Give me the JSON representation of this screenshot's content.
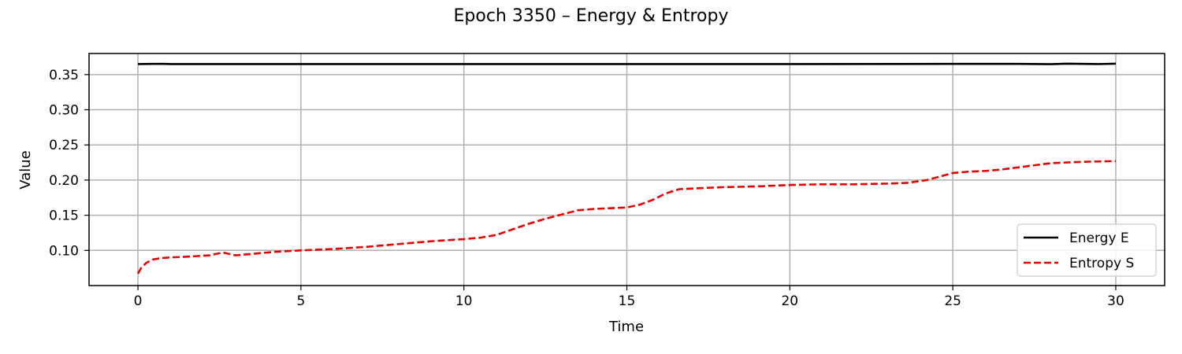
{
  "chart_data": {
    "type": "line",
    "title": "Epoch 3350 – Energy & Entropy",
    "xlabel": "Time",
    "ylabel": "Value",
    "xlim": [
      -1.5,
      31.5
    ],
    "ylim": [
      0.05,
      0.38
    ],
    "xticks": [
      0,
      5,
      10,
      15,
      20,
      25,
      30
    ],
    "xtick_labels": [
      "0",
      "5",
      "10",
      "15",
      "20",
      "25",
      "30"
    ],
    "yticks": [
      0.1,
      0.15,
      0.2,
      0.25,
      0.3,
      0.35
    ],
    "ytick_labels": [
      "0.10",
      "0.15",
      "0.20",
      "0.25",
      "0.30",
      "0.35"
    ],
    "grid": true,
    "legend_position": "lower-right",
    "series": [
      {
        "name": "Energy E",
        "color": "#000000",
        "style": "solid",
        "x": [
          0,
          0.5,
          0.8,
          1,
          2,
          3,
          5,
          10,
          15,
          20,
          25,
          27,
          28,
          28.5,
          29,
          29.5,
          30
        ],
        "y": [
          0.365,
          0.3652,
          0.3652,
          0.365,
          0.365,
          0.365,
          0.365,
          0.365,
          0.365,
          0.365,
          0.3652,
          0.3652,
          0.3648,
          0.3655,
          0.3653,
          0.365,
          0.3655
        ]
      },
      {
        "name": "Entropy S",
        "color": "#e60000",
        "style": "dashed",
        "x": [
          0,
          0.1,
          0.25,
          0.45,
          0.7,
          1.0,
          1.5,
          2.2,
          2.6,
          3.0,
          3.5,
          4.2,
          5.0,
          6.0,
          7.0,
          8.0,
          9.0,
          10.0,
          10.5,
          11.0,
          11.5,
          12.0,
          12.5,
          13.0,
          13.5,
          14.0,
          14.5,
          15.0,
          15.4,
          15.8,
          16.2,
          16.6,
          17.0,
          18.0,
          19.0,
          20.0,
          21.0,
          22.0,
          23.0,
          23.6,
          24.2,
          24.6,
          25.0,
          25.5,
          26.0,
          26.5,
          27.0,
          27.5,
          28.0,
          29.0,
          30.0
        ],
        "y": [
          0.067,
          0.075,
          0.082,
          0.087,
          0.089,
          0.09,
          0.091,
          0.093,
          0.097,
          0.093,
          0.095,
          0.098,
          0.1,
          0.102,
          0.105,
          0.109,
          0.113,
          0.116,
          0.118,
          0.122,
          0.13,
          0.138,
          0.145,
          0.151,
          0.157,
          0.159,
          0.16,
          0.161,
          0.165,
          0.172,
          0.181,
          0.187,
          0.188,
          0.19,
          0.191,
          0.193,
          0.194,
          0.194,
          0.195,
          0.196,
          0.2,
          0.205,
          0.21,
          0.212,
          0.213,
          0.215,
          0.218,
          0.221,
          0.224,
          0.226,
          0.227
        ]
      }
    ]
  }
}
